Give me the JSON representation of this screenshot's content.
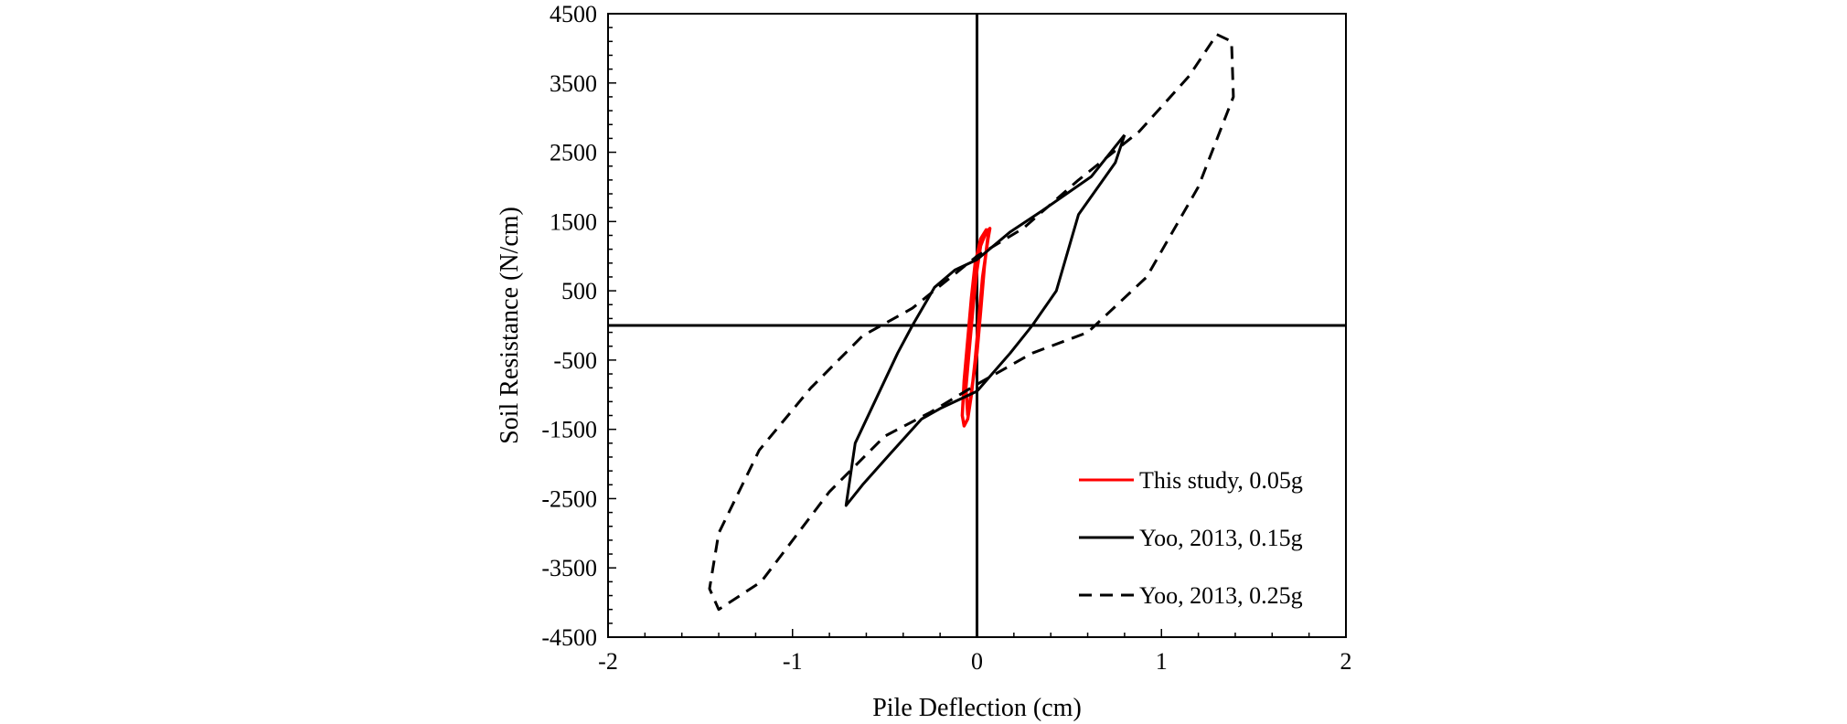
{
  "chart_data": {
    "type": "line",
    "title": "",
    "xlabel": "Pile Deflection (cm)",
    "ylabel": "Soil Resistance  (N/cm)",
    "xlim": [
      -2,
      2
    ],
    "ylim": [
      -4500,
      4500
    ],
    "x_ticks": [
      -2,
      -1,
      0,
      1,
      2
    ],
    "y_ticks": [
      -4500,
      -3500,
      -2500,
      -1500,
      -500,
      500,
      1500,
      2500,
      3500,
      4500
    ],
    "x_tick_labels": [
      "-2",
      "-1",
      "0",
      "1",
      "2"
    ],
    "y_tick_labels": [
      "-4500",
      "-3500",
      "-2500",
      "-1500",
      "-500",
      "500",
      "1500",
      "2500",
      "3500",
      "4500"
    ],
    "grid": false,
    "legend_position": "bottom-right",
    "series": [
      {
        "name": "This study, 0.05g",
        "color": "#ff0000",
        "dash": "solid",
        "points": [
          [
            -0.05,
            -1300
          ],
          [
            -0.06,
            -900
          ],
          [
            -0.04,
            -300
          ],
          [
            -0.02,
            300
          ],
          [
            0.0,
            800
          ],
          [
            0.02,
            1150
          ],
          [
            0.05,
            1350
          ],
          [
            0.07,
            1400
          ],
          [
            0.06,
            1250
          ],
          [
            0.03,
            700
          ],
          [
            0.01,
            100
          ],
          [
            -0.01,
            -500
          ],
          [
            -0.03,
            -1000
          ],
          [
            -0.05,
            -1350
          ],
          [
            -0.07,
            -1450
          ],
          [
            -0.08,
            -1300
          ],
          [
            -0.07,
            -800
          ],
          [
            -0.05,
            -200
          ],
          [
            -0.03,
            400
          ],
          [
            -0.01,
            900
          ],
          [
            0.02,
            1250
          ],
          [
            0.05,
            1380
          ],
          [
            0.06,
            1300
          ],
          [
            0.04,
            850
          ],
          [
            0.02,
            200
          ],
          [
            0.0,
            -400
          ],
          [
            -0.03,
            -950
          ],
          [
            -0.05,
            -1300
          ]
        ]
      },
      {
        "name": "Yoo, 2013, 0.15g",
        "color": "#000000",
        "dash": "solid",
        "points": [
          [
            0.8,
            2750
          ],
          [
            0.75,
            2350
          ],
          [
            0.55,
            1600
          ],
          [
            0.43,
            500
          ],
          [
            0.3,
            0
          ],
          [
            0.18,
            -400
          ],
          [
            0.0,
            -950
          ],
          [
            -0.2,
            -1200
          ],
          [
            -0.3,
            -1350
          ],
          [
            -0.47,
            -1850
          ],
          [
            -0.62,
            -2300
          ],
          [
            -0.71,
            -2600
          ],
          [
            -0.66,
            -1700
          ],
          [
            -0.43,
            -400
          ],
          [
            -0.35,
            0
          ],
          [
            -0.23,
            550
          ],
          [
            -0.12,
            800
          ],
          [
            0.0,
            950
          ],
          [
            0.18,
            1350
          ],
          [
            0.35,
            1650
          ],
          [
            0.62,
            2150
          ],
          [
            0.8,
            2750
          ]
        ]
      },
      {
        "name": "Yoo, 2013, 0.25g",
        "color": "#000000",
        "dash": "dashed",
        "points": [
          [
            1.3,
            4200
          ],
          [
            1.38,
            4100
          ],
          [
            1.39,
            3300
          ],
          [
            1.2,
            2000
          ],
          [
            0.92,
            700
          ],
          [
            0.6,
            -100
          ],
          [
            0.3,
            -400
          ],
          [
            0.0,
            -850
          ],
          [
            -0.25,
            -1250
          ],
          [
            -0.5,
            -1600
          ],
          [
            -0.8,
            -2400
          ],
          [
            -1.17,
            -3700
          ],
          [
            -1.4,
            -4100
          ],
          [
            -1.45,
            -3800
          ],
          [
            -1.4,
            -3000
          ],
          [
            -1.18,
            -1800
          ],
          [
            -0.9,
            -900
          ],
          [
            -0.62,
            -150
          ],
          [
            -0.35,
            250
          ],
          [
            0.0,
            1000
          ],
          [
            0.25,
            1400
          ],
          [
            0.55,
            2100
          ],
          [
            0.88,
            2800
          ],
          [
            1.15,
            3600
          ],
          [
            1.3,
            4200
          ]
        ]
      }
    ]
  }
}
